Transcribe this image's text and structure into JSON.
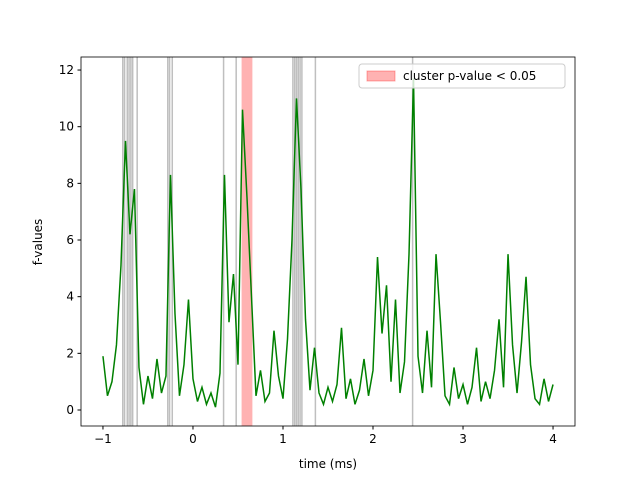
{
  "chart_data": {
    "type": "line",
    "xlabel": "time (ms)",
    "ylabel": "f-values",
    "x": [
      -1.0,
      -0.95,
      -0.9,
      -0.85,
      -0.8,
      -0.75,
      -0.7,
      -0.65,
      -0.6,
      -0.55,
      -0.5,
      -0.45,
      -0.4,
      -0.35,
      -0.3,
      -0.25,
      -0.2,
      -0.15,
      -0.1,
      -0.05,
      0.0,
      0.05,
      0.1,
      0.15,
      0.2,
      0.25,
      0.3,
      0.35,
      0.4,
      0.45,
      0.5,
      0.55,
      0.6,
      0.65,
      0.7,
      0.75,
      0.8,
      0.85,
      0.9,
      0.95,
      1.0,
      1.05,
      1.1,
      1.15,
      1.2,
      1.25,
      1.3,
      1.35,
      1.4,
      1.45,
      1.5,
      1.55,
      1.6,
      1.65,
      1.7,
      1.75,
      1.8,
      1.85,
      1.9,
      1.95,
      2.0,
      2.05,
      2.1,
      2.15,
      2.2,
      2.25,
      2.3,
      2.35,
      2.4,
      2.45,
      2.5,
      2.55,
      2.6,
      2.65,
      2.7,
      2.75,
      2.8,
      2.85,
      2.9,
      2.95,
      3.0,
      3.05,
      3.1,
      3.15,
      3.2,
      3.25,
      3.3,
      3.35,
      3.4,
      3.45,
      3.5,
      3.55,
      3.6,
      3.65,
      3.7,
      3.75,
      3.8,
      3.85,
      3.9,
      3.95,
      4.0
    ],
    "series": [
      {
        "color": "#008000",
        "values": [
          1.9,
          0.5,
          1.0,
          2.3,
          5.1,
          9.5,
          6.2,
          7.8,
          1.5,
          0.2,
          1.2,
          0.4,
          1.8,
          0.6,
          1.2,
          8.3,
          3.4,
          0.5,
          1.6,
          3.9,
          1.1,
          0.3,
          0.8,
          0.2,
          0.6,
          0.1,
          1.3,
          8.3,
          3.1,
          4.8,
          1.6,
          10.6,
          7.5,
          4.0,
          0.5,
          1.4,
          0.3,
          0.6,
          2.8,
          1.2,
          0.4,
          2.5,
          6.0,
          11.0,
          7.8,
          3.2,
          0.7,
          2.2,
          0.6,
          0.2,
          0.8,
          0.3,
          0.9,
          2.9,
          0.4,
          1.1,
          0.2,
          0.7,
          1.8,
          0.5,
          1.4,
          5.4,
          2.7,
          4.4,
          1.0,
          3.9,
          0.6,
          1.7,
          5.5,
          11.7,
          1.9,
          0.6,
          2.8,
          0.8,
          5.5,
          3.1,
          0.5,
          0.2,
          1.5,
          0.4,
          0.9,
          0.2,
          0.8,
          2.2,
          0.3,
          1.0,
          0.4,
          1.4,
          3.2,
          0.8,
          5.5,
          2.3,
          0.6,
          2.4,
          4.7,
          1.6,
          0.4,
          0.2,
          1.1,
          0.3,
          0.9
        ]
      }
    ],
    "vlines": {
      "color": "#808080",
      "x": [
        -0.78,
        -0.76,
        -0.73,
        -0.71,
        -0.69,
        -0.67,
        -0.62,
        -0.28,
        -0.26,
        -0.23,
        0.34,
        0.48,
        1.11,
        1.13,
        1.15,
        1.17,
        1.19,
        1.21,
        1.36,
        2.44
      ]
    },
    "highlight": {
      "name": "cluster p-value < 0.05",
      "color": "#ff0000",
      "x": [
        0.54,
        0.66
      ]
    },
    "xlim": [
      -1.244,
      4.244
    ],
    "ylim": [
      -0.565,
      12.46
    ],
    "xticks": [
      {
        "value": -1,
        "label": "−1"
      },
      0,
      1,
      2,
      3,
      4
    ],
    "yticks": [
      0,
      2,
      4,
      6,
      8,
      10,
      12
    ],
    "legend": "upper right"
  }
}
